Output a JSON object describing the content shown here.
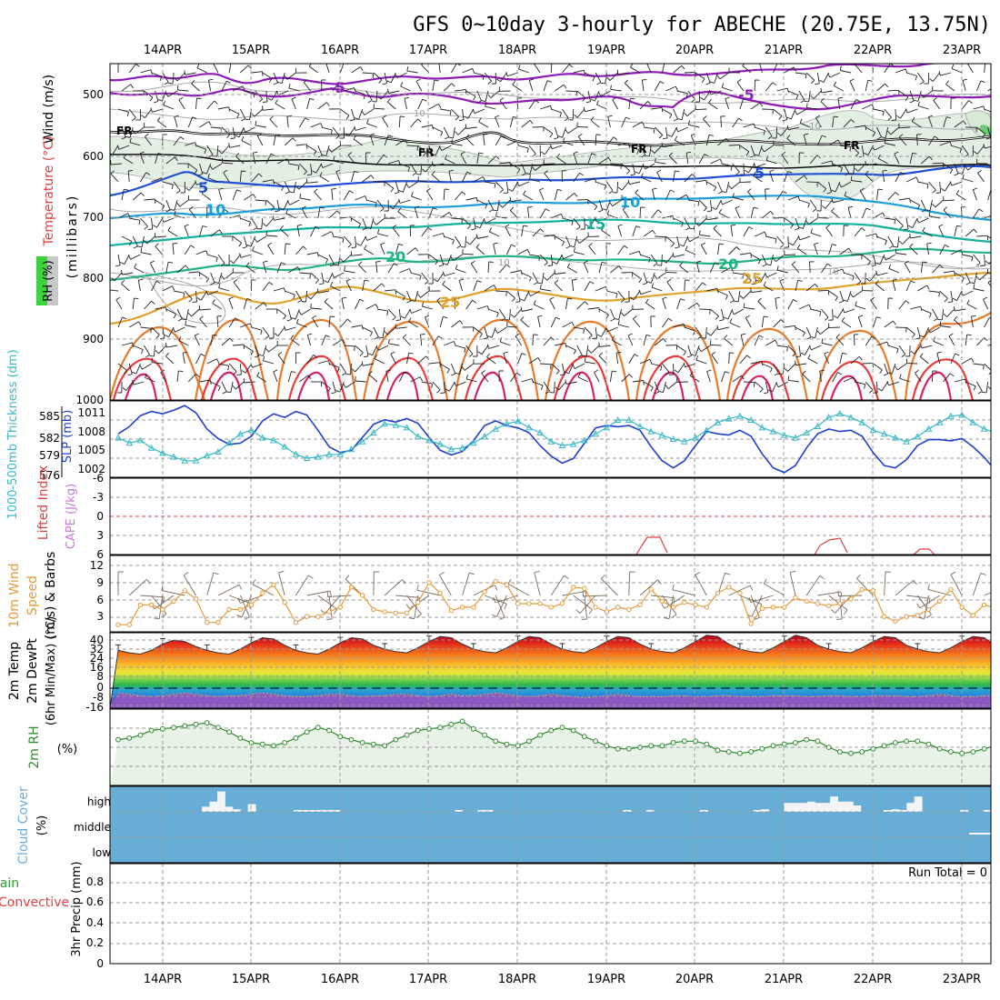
{
  "title": "GFS 0~10day 3-hourly for ABECHE (20.75E, 13.75N)",
  "dates": [
    "14APR",
    "15APR",
    "16APR",
    "17APR",
    "18APR",
    "19APR",
    "20APR",
    "21APR",
    "22APR",
    "23APR"
  ],
  "run_total": "Run Total = 0",
  "colors": {
    "purple": "#8e1bb8",
    "blue": "#1e4fd6",
    "skyblue": "#1a9fdc",
    "teal": "#14b0a0",
    "green": "#20b484",
    "gold": "#e0a22a",
    "orange": "#e87a2a",
    "red": "#e83a3a",
    "magenta": "#d8206a",
    "slp": "#1e3fcf",
    "thick": "#3ab9c8",
    "wind": "#e59a3a",
    "rh": "#2f8a2f",
    "cloud": "#67aed6",
    "lifted": "#e04040"
  },
  "panels": {
    "upper": {
      "ylabel_wind": "Wind (m/s)",
      "ylabel_temp": "Temperature (°C)",
      "ylabel_mb": "(millibars)",
      "rh_label": "RH (%)",
      "ticks": [
        "500",
        "600",
        "700",
        "800",
        "900",
        "1000"
      ],
      "contour_labels": {
        "m5a": "-5",
        "m5b": "-5",
        "fr1": "FR",
        "fr2": "FR",
        "fr3": "FR",
        "fr4": "FR",
        "p5a": "5",
        "p5b": "5",
        "p10a": "10",
        "p10b": "10",
        "p15": "15",
        "p20a": "20",
        "p20b": "20",
        "p25a": "25",
        "p25b": "25",
        "g10a": "10",
        "g10b": "10",
        "g10c": "10",
        "g10d": "10",
        "g10e": "10"
      }
    },
    "slp": {
      "ylabel_thick": "1000-500mb Thickness (dm)",
      "ylabel_slp": "SLP (mb)",
      "thick_ticks": [
        "585",
        "582",
        "579",
        "576"
      ],
      "slp_ticks": [
        "1011",
        "1008",
        "1005",
        "1002"
      ]
    },
    "cape": {
      "ylabel_li": "Lifted Index",
      "ylabel_cape": "CAPE (J/kg)",
      "ticks": [
        "-6",
        "-3",
        "0",
        "3",
        "6"
      ]
    },
    "wind10": {
      "ylabel_a": "10m Wind",
      "ylabel_b": "Speed",
      "ylabel_c": "(m/s) & Barbs",
      "ticks": [
        "12",
        "9",
        "6",
        "3"
      ]
    },
    "temp2m": {
      "ylabel_a": "2m Temp",
      "ylabel_b": "2m DewPt",
      "ylabel_c": "(6hr Min/Max) (°C)",
      "ticks": [
        "40",
        "32",
        "24",
        "16",
        "8",
        "0",
        "-8",
        "-16"
      ]
    },
    "rh2m": {
      "ylabel_a": "2m RH",
      "ylabel_b": "(%)"
    },
    "cloud": {
      "ylabel_a": "Cloud Cover",
      "ylabel_b": "(%)",
      "levels": [
        "high",
        "middle",
        "low"
      ]
    },
    "precip": {
      "ylabel_a": "Total / Rain",
      "ylabel_b": "Convective",
      "ylabel_c": "3hr Precip (mm)",
      "ticks": [
        "0.8",
        "0.6",
        "0.4",
        "0.2",
        "0"
      ]
    }
  },
  "chart_data": [
    {
      "type": "line",
      "title": "SLP and 1000-500mb Thickness",
      "x_unit": "hours since start (3-hourly)",
      "series": [
        {
          "name": "SLP (mb)",
          "values": [
            1007.4,
            1008.6,
            1010.5,
            1011.2,
            1010.8,
            1011.4,
            1012.2,
            1011.0,
            1008.2,
            1006.6,
            1005.6,
            1005.8,
            1007.0,
            1009.6,
            1010.8,
            1010.2,
            1011.2,
            1010.6,
            1008.0,
            1005.2,
            1004.2,
            1004.6,
            1006.8,
            1009.0,
            1009.8,
            1009.4,
            1010.0,
            1009.2,
            1006.8,
            1004.6,
            1003.8,
            1004.4,
            1006.2,
            1008.8,
            1009.6,
            1008.8,
            1008.4,
            1007.6,
            1005.4,
            1003.6,
            1002.4,
            1003.2,
            1005.8,
            1008.4,
            1008.8,
            1008.6,
            1008.8,
            1008.0,
            1005.2,
            1002.8,
            1001.6,
            1002.8,
            1005.4,
            1007.8,
            1007.4,
            1007.2,
            1008.0,
            1007.0,
            1004.0,
            1001.6,
            1000.8,
            1002.0,
            1005.0,
            1007.4,
            1008.2,
            1007.8,
            1008.0,
            1007.0,
            1004.2,
            1002.0,
            1001.6,
            1003.0,
            1005.4,
            1006.4,
            1006.4,
            1006.2,
            1006.6,
            1005.2,
            1003.4,
            1001.2,
            1000.6,
            1002.2,
            1004.4,
            1006.0,
            1006.4,
            1006.0,
            1006.4,
            1005.8,
            1003.8,
            1001.4,
            1000.8,
            1002.2,
            1004.4,
            1006.0,
            1006.2,
            1006.4,
            1007.2,
            1007.4
          ]
        },
        {
          "name": "1000-500mb Thickness (dm)",
          "values": [
            581.2,
            580.4,
            580.8,
            579.6,
            578.8,
            578.2,
            577.6,
            577.6,
            578.4,
            579.0,
            580.4,
            581.8,
            582.4,
            581.2,
            580.8,
            579.8,
            578.6,
            578.0,
            578.2,
            578.6,
            578.6,
            579.4,
            580.6,
            582.0,
            583.4,
            583.2,
            582.8,
            581.4,
            580.8,
            580.2,
            579.4,
            579.6,
            580.4,
            581.4,
            582.6,
            583.4,
            583.8,
            582.8,
            582.0,
            580.6,
            580.0,
            580.2,
            580.8,
            581.8,
            582.8,
            584.0,
            584.0,
            583.0,
            582.2,
            581.6,
            581.0,
            580.6,
            581.2,
            582.4,
            583.6,
            584.2,
            584.6,
            584.0,
            582.8,
            582.2,
            581.6,
            581.2,
            582.0,
            583.0,
            584.4,
            585.0,
            584.4,
            583.6,
            582.4,
            581.8,
            581.2,
            580.6,
            581.4,
            582.6,
            583.6,
            584.6,
            584.8,
            583.6,
            582.6,
            582.0,
            581.8,
            582.0,
            582.8,
            583.8,
            585.0,
            586.0,
            585.4,
            584.6,
            583.0,
            582.0,
            581.8,
            582.2,
            583.4,
            584.6,
            585.8,
            586.0,
            585.2,
            583.4
          ]
        }
      ],
      "ylim_slp": [
        1000,
        1013
      ],
      "ylim_thick": [
        575,
        587
      ]
    },
    {
      "type": "line",
      "title": "10m Wind Speed (m/s)",
      "series": [
        {
          "name": "10m Wind Speed",
          "values": [
            1.2,
            1.2,
            4.6,
            4.6,
            3.8,
            5.2,
            7.0,
            5.6,
            1.6,
            1.6,
            3.8,
            3.8,
            4.6,
            6.6,
            8.0,
            5.0,
            1.6,
            2.6,
            2.6,
            3.4,
            4.2,
            7.6,
            6.2,
            3.8,
            3.4,
            3.2,
            3.2,
            5.0,
            8.4,
            6.6,
            3.6,
            4.2,
            4.2,
            6.8,
            8.6,
            8.0,
            4.8,
            4.8,
            4.8,
            4.2,
            4.8,
            7.6,
            7.4,
            4.2,
            3.4,
            4.2,
            3.8,
            4.6,
            7.2,
            5.2,
            4.2,
            5.0,
            4.6,
            4.2,
            6.6,
            7.6,
            6.6,
            1.4,
            4.0,
            4.2,
            4.2,
            5.8,
            5.2,
            4.8,
            4.4,
            4.8,
            5.6,
            7.2,
            7.0,
            2.6,
            1.8,
            2.6,
            2.8,
            3.8,
            5.2,
            7.2,
            4.2,
            2.8,
            4.6,
            4.0,
            4.6,
            5.6,
            6.8,
            3.2,
            3.8,
            3.8,
            2.4,
            4.4,
            8.0,
            7.0,
            4.8,
            2.6,
            1.2,
            3.0,
            2.4,
            2.4,
            4.4,
            3.6
          ]
        }
      ],
      "ylim": [
        0,
        13
      ]
    },
    {
      "type": "area",
      "title": "2m Temp / 2m DewPt (°C)",
      "series": [
        {
          "name": "2m Temp",
          "values": [
            28,
            26,
            25,
            28,
            33,
            36,
            35,
            31,
            28,
            26,
            25,
            29,
            34,
            38,
            37,
            32,
            28,
            26,
            25,
            29,
            34,
            38,
            37,
            32,
            29,
            27,
            26,
            30,
            35,
            39,
            38,
            33,
            29,
            27,
            26,
            30,
            35,
            39,
            38,
            33,
            29,
            27,
            26,
            30,
            35,
            39,
            38,
            33,
            29,
            27,
            26,
            30,
            35,
            40,
            39,
            33,
            29,
            27,
            26,
            30,
            35,
            40,
            38,
            32,
            29,
            27,
            26,
            30,
            35,
            39,
            38,
            32,
            29,
            27,
            26,
            30,
            35,
            39,
            38,
            32,
            29,
            27,
            26,
            30,
            35,
            40,
            38,
            32,
            29,
            27,
            26,
            28,
            28,
            28,
            28,
            28,
            27,
            26
          ]
        },
        {
          "name": "2m DewPt",
          "values": [
            -6,
            -7,
            -8,
            -9,
            -8,
            -7,
            -6,
            -7,
            -8,
            -9,
            -8,
            -8,
            -7,
            -6,
            -7,
            -8,
            -9,
            -9,
            -8,
            -7,
            -7,
            -8,
            -9,
            -8,
            -8,
            -7,
            -7,
            -8,
            -9,
            -8,
            -7,
            -8,
            -8,
            -7,
            -6,
            -7,
            -8,
            -9,
            -8,
            -7,
            -8,
            -9,
            -10,
            -9,
            -8,
            -7,
            -8,
            -9,
            -9,
            -9,
            -8,
            -8,
            -9,
            -9,
            -8,
            -8,
            -9,
            -9,
            -9,
            -8,
            -8,
            -8,
            -9,
            -9,
            -8,
            -8,
            -9,
            -9,
            -8,
            -8,
            -8,
            -9,
            -9,
            -8,
            -7,
            -8,
            -9,
            -9,
            -8,
            -8,
            -8,
            -9,
            -9,
            -8,
            -7,
            -8,
            -9,
            -9,
            -8,
            -8,
            -9,
            -9,
            -8,
            -7,
            -7,
            -6,
            -5,
            -3
          ]
        }
      ],
      "ylim": [
        -18,
        42
      ]
    },
    {
      "type": "line",
      "title": "2m RH (%)",
      "series": [
        {
          "name": "2m RH",
          "values": [
            30,
            31,
            33,
            36,
            37,
            38,
            39,
            40,
            41,
            38,
            35,
            31,
            28,
            27,
            26,
            28,
            31,
            35,
            38,
            36,
            32,
            30,
            28,
            27,
            26,
            30,
            33,
            36,
            37,
            38,
            40,
            42,
            37,
            33,
            29,
            27,
            26,
            29,
            33,
            36,
            38,
            36,
            32,
            29,
            26,
            24,
            24,
            25,
            26,
            26,
            28,
            29,
            29,
            27,
            23,
            22,
            21,
            22,
            24,
            26,
            27,
            28,
            30,
            29,
            25,
            22,
            21,
            22,
            24,
            26,
            28,
            29,
            29,
            27,
            24,
            22,
            21,
            22,
            24,
            26,
            27,
            28,
            28,
            27,
            25,
            23,
            22,
            21,
            24,
            27,
            27,
            28,
            27,
            23,
            22,
            21,
            21,
            30,
            31,
            34,
            36,
            38
          ]
        }
      ],
      "ylim": [
        0,
        50
      ]
    },
    {
      "type": "bar",
      "title": "Cloud Cover high (%)",
      "series": [
        {
          "name": "high",
          "values": [
            0,
            0,
            0,
            0,
            0,
            0,
            0,
            0,
            0,
            0,
            0,
            0,
            20,
            40,
            80,
            20,
            10,
            0,
            30,
            0,
            0,
            0,
            0,
            0,
            5,
            5,
            5,
            5,
            5,
            5,
            0,
            0,
            0,
            0,
            0,
            0,
            0,
            0,
            0,
            0,
            0,
            0,
            0,
            0,
            0,
            5,
            0,
            0,
            5,
            5,
            0,
            0,
            0,
            0,
            0,
            0,
            0,
            0,
            0,
            0,
            0,
            0,
            0,
            0,
            0,
            0,
            0,
            5,
            0,
            0,
            5,
            0,
            0,
            0,
            0,
            0,
            0,
            5,
            0,
            0,
            0,
            0,
            0,
            0,
            5,
            10,
            0,
            0,
            35,
            35,
            35,
            40,
            35,
            35,
            60,
            40,
            40,
            25,
            0,
            0,
            0,
            5,
            10,
            5,
            35,
            60,
            0,
            0,
            0,
            0,
            0,
            5,
            0,
            0,
            5
          ]
        }
      ],
      "ylim": [
        0,
        100
      ]
    },
    {
      "type": "bar",
      "title": "3hr Precip (mm)",
      "series": [
        {
          "name": "Total",
          "values": []
        },
        {
          "name": "Convective",
          "values": []
        }
      ],
      "ylim": [
        0,
        1.0
      ]
    }
  ]
}
